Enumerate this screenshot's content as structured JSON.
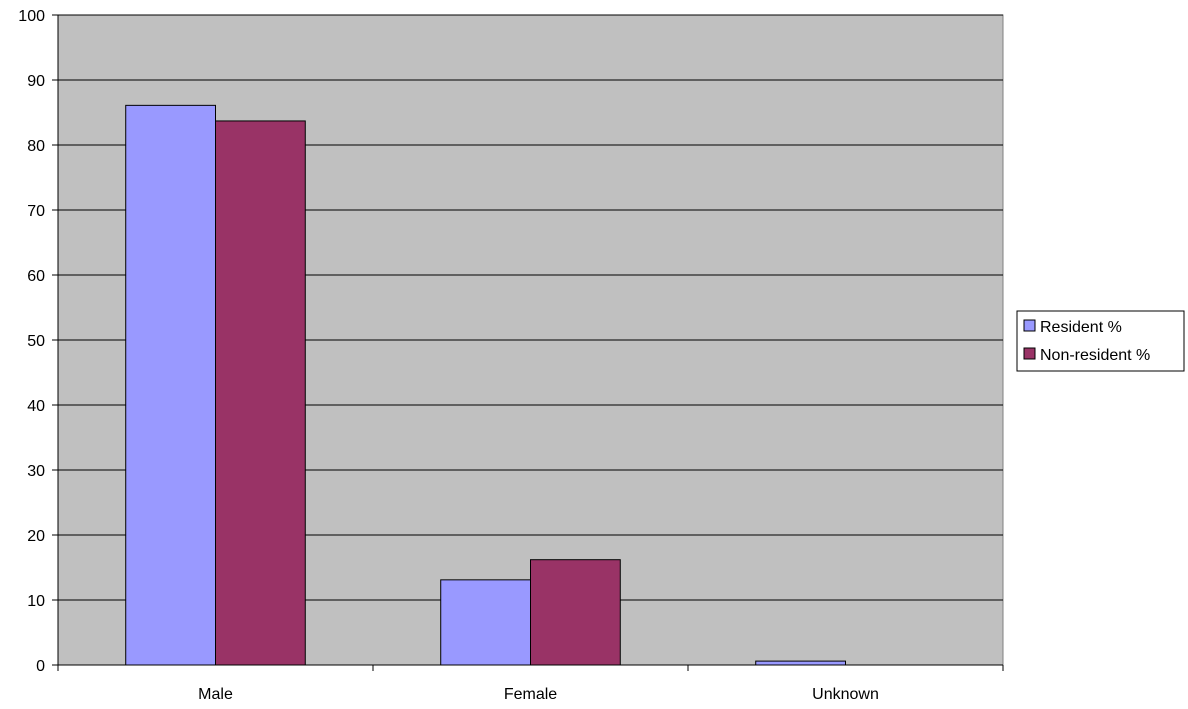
{
  "chart_data": {
    "type": "bar",
    "categories": [
      "Male",
      "Female",
      "Unknown"
    ],
    "series": [
      {
        "name": "Resident %",
        "values": [
          86.1,
          13.1,
          0.6
        ],
        "color": "#9999ff"
      },
      {
        "name": "Non-resident %",
        "values": [
          83.7,
          16.2,
          0
        ],
        "color": "#993366"
      }
    ],
    "ylim": [
      0,
      100
    ],
    "yticks": [
      0,
      10,
      20,
      30,
      40,
      50,
      60,
      70,
      80,
      90,
      100
    ],
    "grid": true,
    "plot_background": "#c0c0c0",
    "legend_position": "right",
    "title": "",
    "xlabel": "",
    "ylabel": ""
  }
}
